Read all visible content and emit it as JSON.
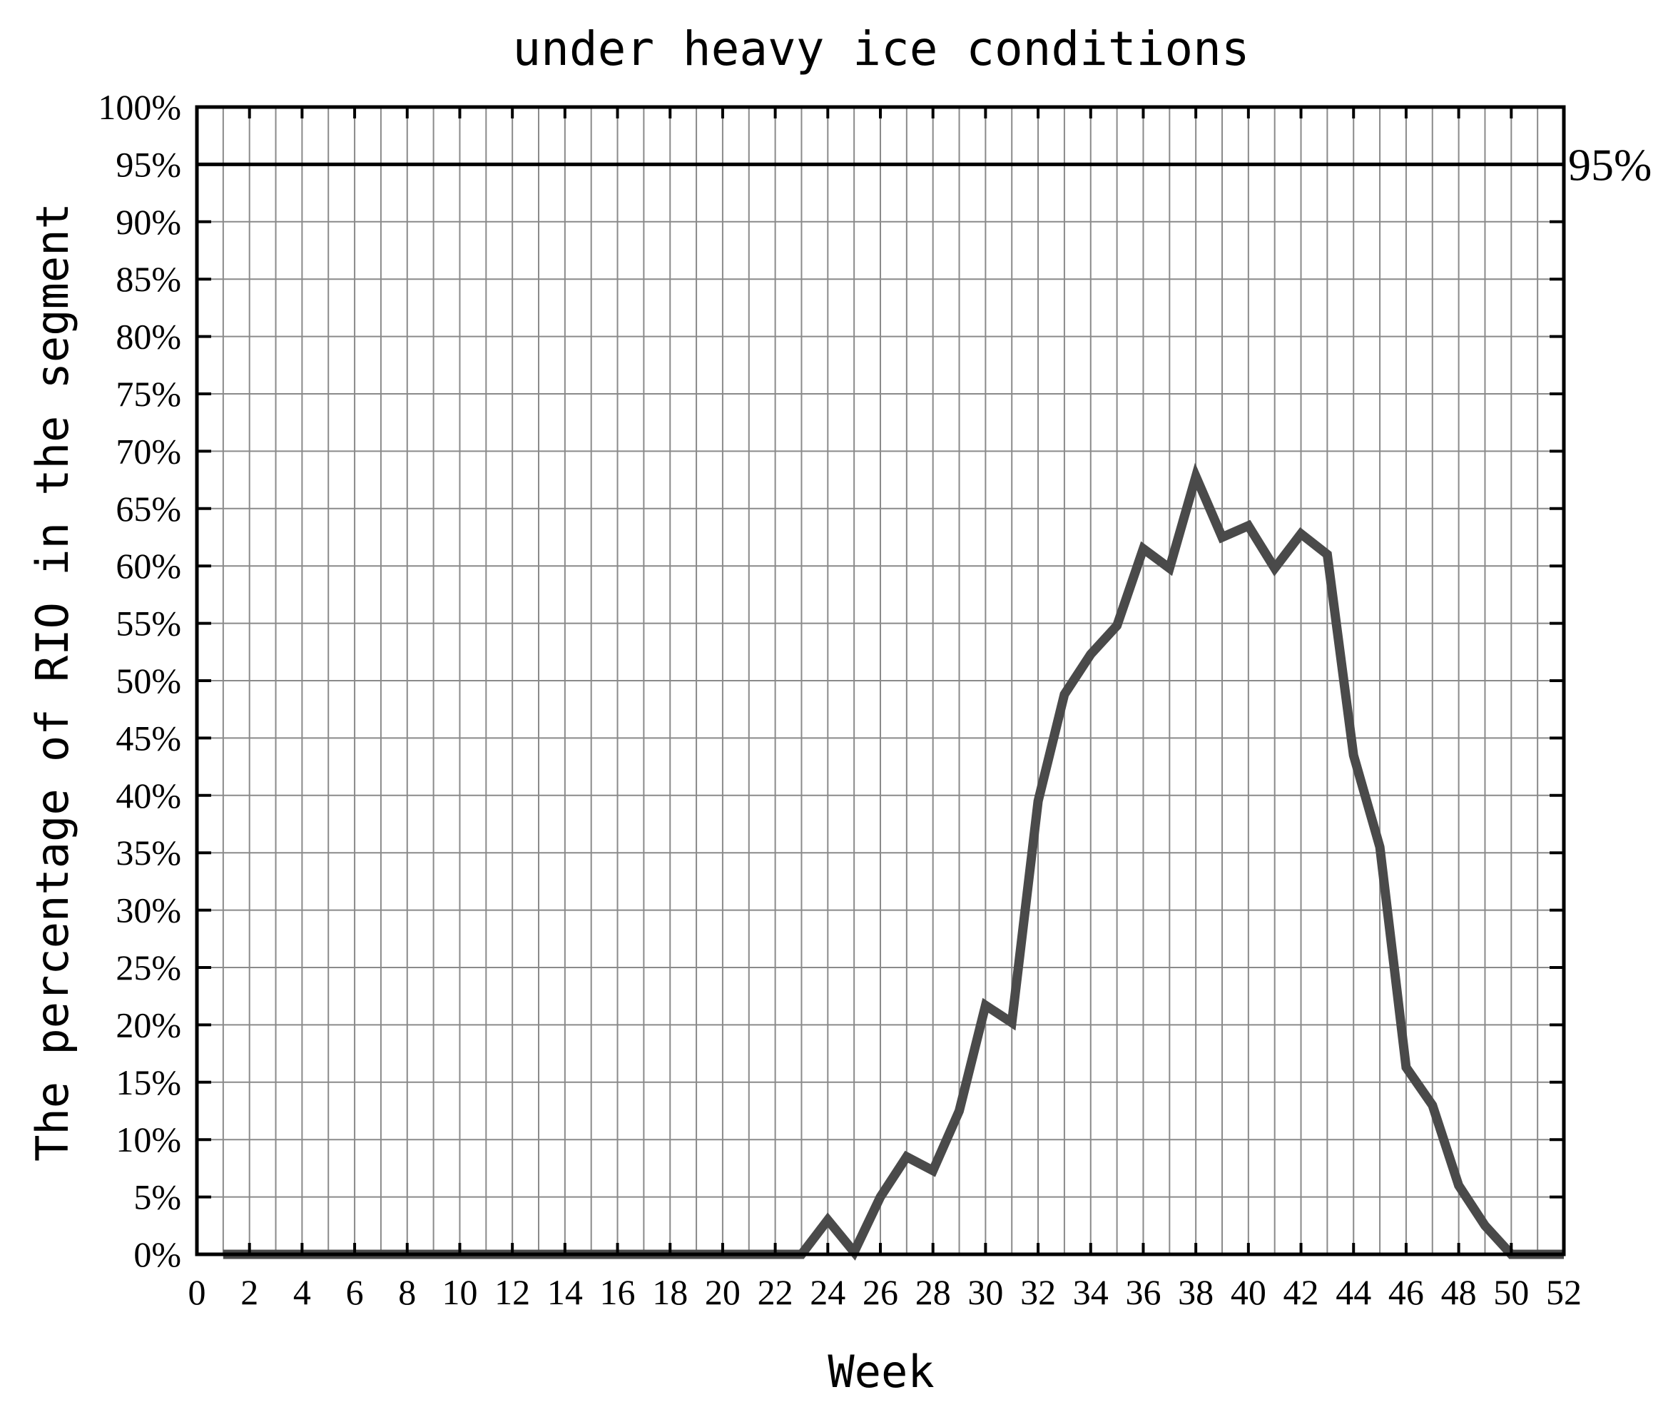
{
  "chart_data": {
    "type": "line",
    "title": "under heavy ice conditions",
    "xlabel": "Week",
    "ylabel": "The percentage of RIO in the segment",
    "xlim": [
      0,
      52
    ],
    "ylim": [
      0,
      100
    ],
    "x_ticks": [
      0,
      2,
      4,
      6,
      8,
      10,
      12,
      14,
      16,
      18,
      20,
      22,
      24,
      26,
      28,
      30,
      32,
      34,
      36,
      38,
      40,
      42,
      44,
      46,
      48,
      50,
      52
    ],
    "x_tick_labels": [
      "0",
      "2",
      "4",
      "6",
      "8",
      "10",
      "12",
      "14",
      "16",
      "18",
      "20",
      "22",
      "24",
      "26",
      "28",
      "30",
      "32",
      "34",
      "36",
      "38",
      "40",
      "42",
      "44",
      "46",
      "48",
      "50",
      "52"
    ],
    "y_ticks": [
      0,
      5,
      10,
      15,
      20,
      25,
      30,
      35,
      40,
      45,
      50,
      55,
      60,
      65,
      70,
      75,
      80,
      85,
      90,
      95,
      100
    ],
    "y_tick_labels": [
      "0%",
      "5%",
      "10%",
      "15%",
      "20%",
      "25%",
      "30%",
      "35%",
      "40%",
      "45%",
      "50%",
      "55%",
      "60%",
      "65%",
      "70%",
      "75%",
      "80%",
      "85%",
      "90%",
      "95%",
      "100%"
    ],
    "grid": true,
    "reference_line": {
      "y": 95,
      "label": "95%"
    },
    "series": [
      {
        "color": "#4a4a4a",
        "x": [
          1,
          2,
          3,
          4,
          5,
          6,
          7,
          8,
          9,
          10,
          11,
          12,
          13,
          14,
          15,
          16,
          17,
          18,
          19,
          20,
          21,
          22,
          23,
          24,
          25,
          26,
          27,
          28,
          29,
          30,
          31,
          32,
          33,
          34,
          35,
          36,
          37,
          38,
          39,
          40,
          41,
          42,
          43,
          44,
          45,
          46,
          47,
          48,
          49,
          50,
          51,
          52
        ],
        "y": [
          0,
          0,
          0,
          0,
          0,
          0,
          0,
          0,
          0,
          0,
          0,
          0,
          0,
          0,
          0,
          0,
          0,
          0,
          0,
          0,
          0,
          0,
          0,
          3,
          0.2,
          5,
          8.5,
          7.3,
          12.5,
          21.7,
          20.2,
          39.5,
          48.8,
          52.3,
          54.8,
          61.5,
          59.8,
          67.8,
          62.5,
          63.5,
          59.8,
          62.8,
          61,
          43.5,
          35.5,
          16.3,
          13,
          6,
          2.5,
          0,
          0,
          0
        ]
      }
    ]
  }
}
